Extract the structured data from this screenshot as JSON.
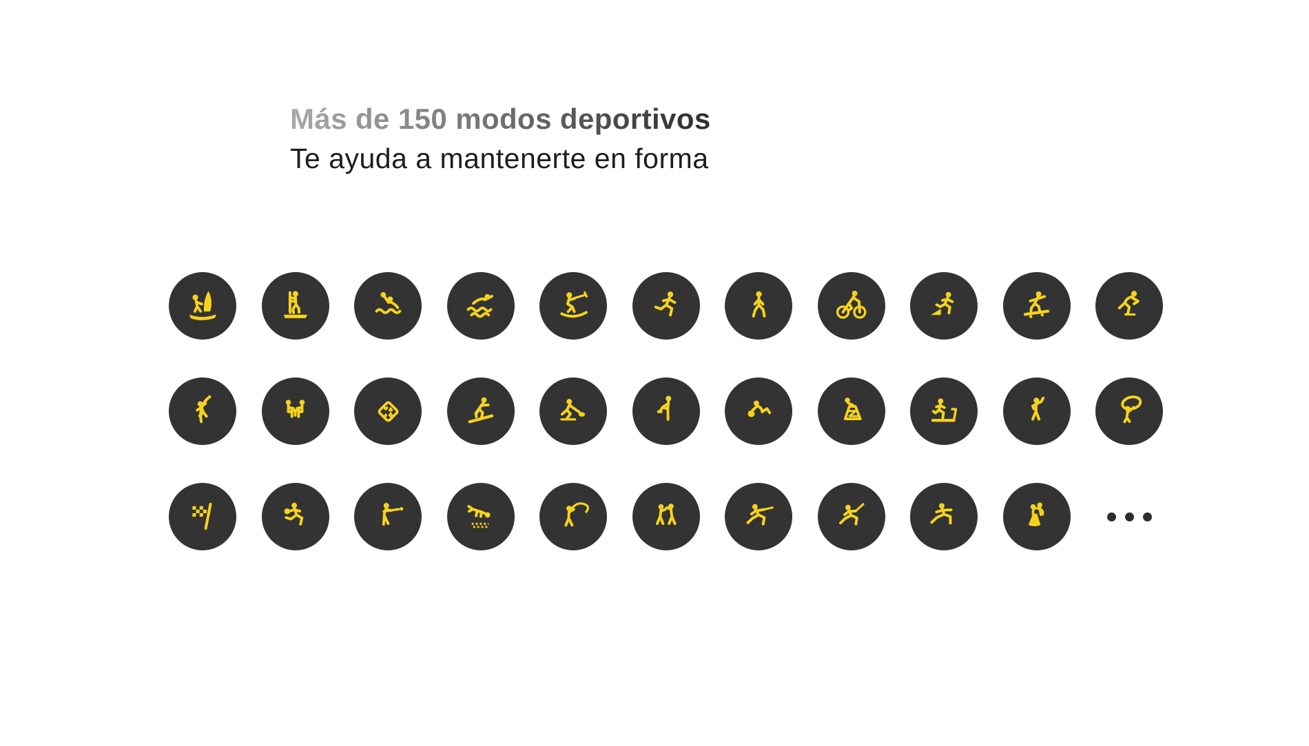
{
  "header": {
    "title": "Más de 150 modos deportivos",
    "subtitle": "Te ayuda a mantenerte en forma"
  },
  "colors": {
    "background": "#ffffff",
    "badge_circle": "#333333",
    "icon_yellow": "#f5d31d",
    "title_gradient_start": "#a9a9a9",
    "title_gradient_end": "#2d2d2d",
    "subtitle_text": "#1d1d1d",
    "ellipsis_dots": "#2e2e2e"
  },
  "sport_modes": {
    "rows": [
      [
        "windsurfing",
        "stand-up-paddleboarding",
        "water-polo",
        "swimming",
        "water-skiing",
        "running",
        "walking",
        "cycling",
        "trail-running",
        "skateboarding",
        "speed-skating"
      ],
      [
        "rock-climbing",
        "board-games",
        "card-games",
        "snowboarding",
        "curling",
        "stretching",
        "core-training",
        "stair-climbing",
        "treadmill",
        "aerobics",
        "hula-hoop"
      ],
      [
        "motor-racing",
        "bowling",
        "billiards",
        "diving",
        "fishing",
        "boxing",
        "fencing",
        "epee-fencing",
        "martial-arts",
        "ballroom-dancing",
        "more"
      ]
    ],
    "more_dots_count": 3
  }
}
